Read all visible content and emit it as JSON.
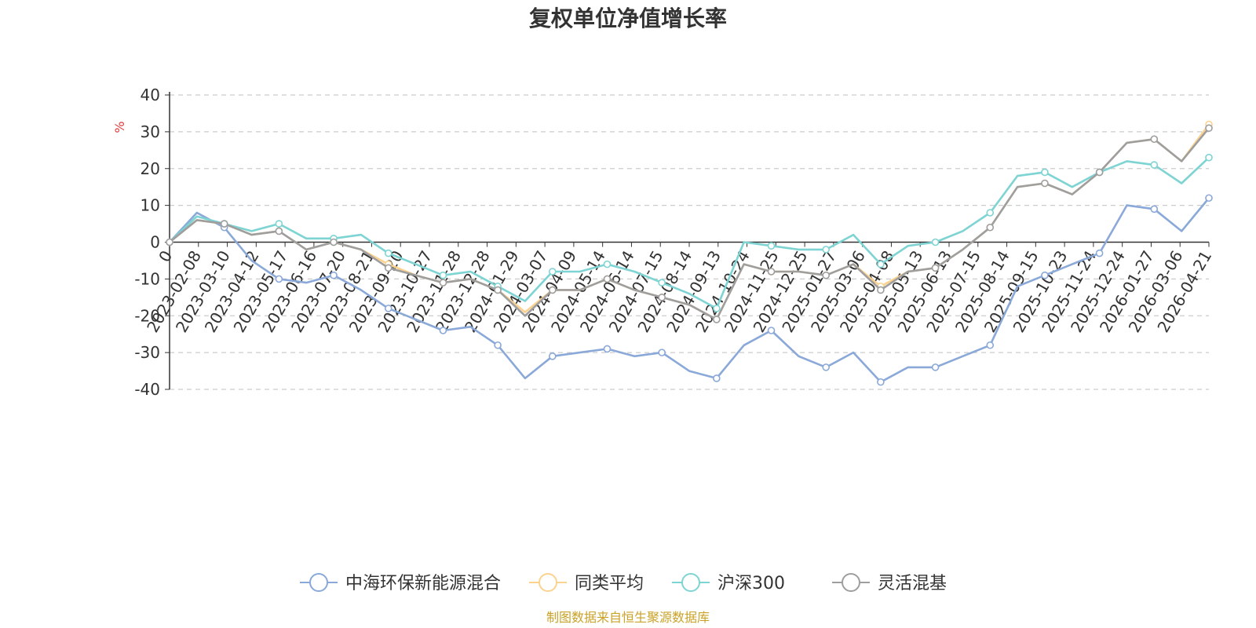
{
  "chart_data": {
    "type": "line",
    "title": "复权单位净值增长率",
    "ylabel": "%",
    "ylabel_color": "#e23b3b",
    "ylim": [
      -40,
      40
    ],
    "yticks": [
      40,
      30,
      20,
      10,
      0,
      -10,
      -20,
      -30,
      -40
    ],
    "grid": true,
    "legend_position": "bottom",
    "x_ticks": [
      "0",
      "2023-02-08",
      "2023-03-10",
      "2023-04-12",
      "2023-05-17",
      "2023-06-16",
      "2023-07-20",
      "2023-08-21",
      "2023-09-20",
      "2023-10-27",
      "2023-11-28",
      "2023-12-28",
      "2024-01-29",
      "2024-03-07",
      "2024-04-09",
      "2024-05-14",
      "2024-06-14",
      "2024-07-15",
      "2024-08-14",
      "2024-09-13",
      "2024-10-24",
      "2024-11-25",
      "2024-12-25",
      "2025-01-27",
      "2025-03-06",
      "2025-04-08",
      "2025-05-13",
      "2025-06-13",
      "2025-07-15",
      "2025-08-14",
      "2025-09-15",
      "2025-10-23",
      "2025-11-24",
      "2025-12-24",
      "2026-01-27",
      "2026-03-06",
      "2026-04-21"
    ],
    "series": [
      {
        "name": "中海环保新能源混合",
        "color": "#8aa8d8",
        "values": [
          0,
          8,
          4,
          -5,
          -10,
          -11,
          -9,
          -13,
          -18,
          -21,
          -24,
          -23,
          -28,
          -37,
          -31,
          -30,
          -29,
          -31,
          -30,
          -35,
          -37,
          -28,
          -24,
          -31,
          -34,
          -30,
          -38,
          -34,
          -34,
          -31,
          -28,
          -12,
          -9,
          -6,
          -3,
          10,
          9,
          3,
          12
        ]
      },
      {
        "name": "同类平均",
        "color": "#fcd28f",
        "values": [
          0,
          6,
          5,
          2,
          3,
          -2,
          0,
          -2,
          -6,
          -9,
          -11,
          -10,
          -13,
          -19,
          -13,
          -13,
          -10,
          -13,
          -15,
          -17,
          -21,
          -6,
          -8,
          -8,
          -9,
          -6,
          -12,
          -8,
          -7,
          -2,
          4,
          15,
          16,
          13,
          19,
          27,
          28,
          22,
          32
        ]
      },
      {
        "name": "沪深300",
        "color": "#7ed3d3",
        "values": [
          0,
          7,
          5,
          3,
          5,
          1,
          1,
          2,
          -3,
          -6,
          -9,
          -8,
          -12,
          -16,
          -8,
          -8,
          -6,
          -8,
          -11,
          -14,
          -18,
          0,
          -1,
          -2,
          -2,
          2,
          -6,
          -1,
          0,
          3,
          8,
          18,
          19,
          15,
          19,
          22,
          21,
          16,
          23
        ]
      },
      {
        "name": "灵活混基",
        "color": "#9e9e9e",
        "values": [
          0,
          6,
          5,
          2,
          3,
          -2,
          0,
          -2,
          -7,
          -9,
          -11,
          -10,
          -13,
          -20,
          -13,
          -13,
          -10,
          -13,
          -15,
          -17,
          -21,
          -6,
          -8,
          -8,
          -9,
          -6,
          -13,
          -8,
          -7,
          -2,
          4,
          15,
          16,
          13,
          19,
          27,
          28,
          22,
          31
        ]
      }
    ]
  },
  "source_note": "制图数据来自恒生聚源数据库",
  "source_color": "#c9a227"
}
